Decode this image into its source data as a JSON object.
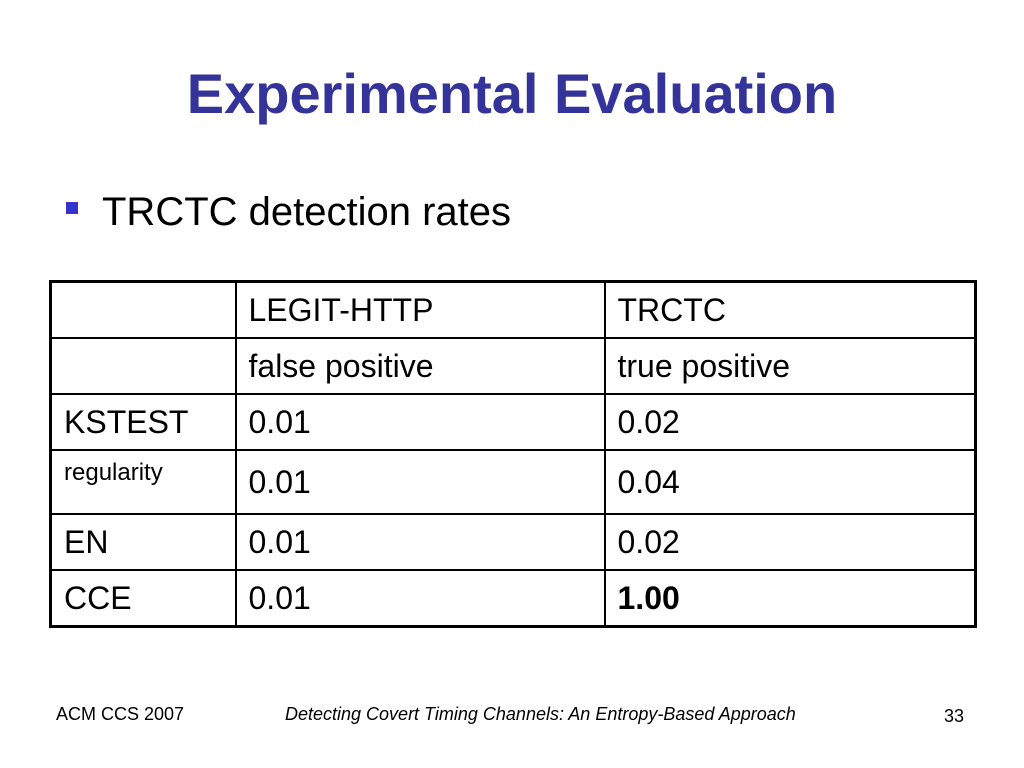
{
  "slide": {
    "title": "Experimental Evaluation",
    "bullet": "TRCTC detection rates",
    "colors": {
      "title": "#333399",
      "bullet_square": "#3333cc"
    },
    "bullet_icon": "square-bullet-icon"
  },
  "table": {
    "rows": [
      [
        "",
        "LEGIT-HTTP",
        "TRCTC"
      ],
      [
        "",
        "false positive",
        "true positive"
      ],
      [
        "KSTEST",
        "0.01",
        "0.02"
      ],
      [
        "regularity",
        "0.01",
        "0.04"
      ],
      [
        "EN",
        "0.01",
        "0.02"
      ],
      [
        "CCE",
        "0.01",
        "1.00"
      ]
    ]
  },
  "footer": {
    "left": "ACM CCS 2007",
    "center": "Detecting Covert Timing Channels: An Entropy-Based Approach",
    "page_number": "33"
  }
}
